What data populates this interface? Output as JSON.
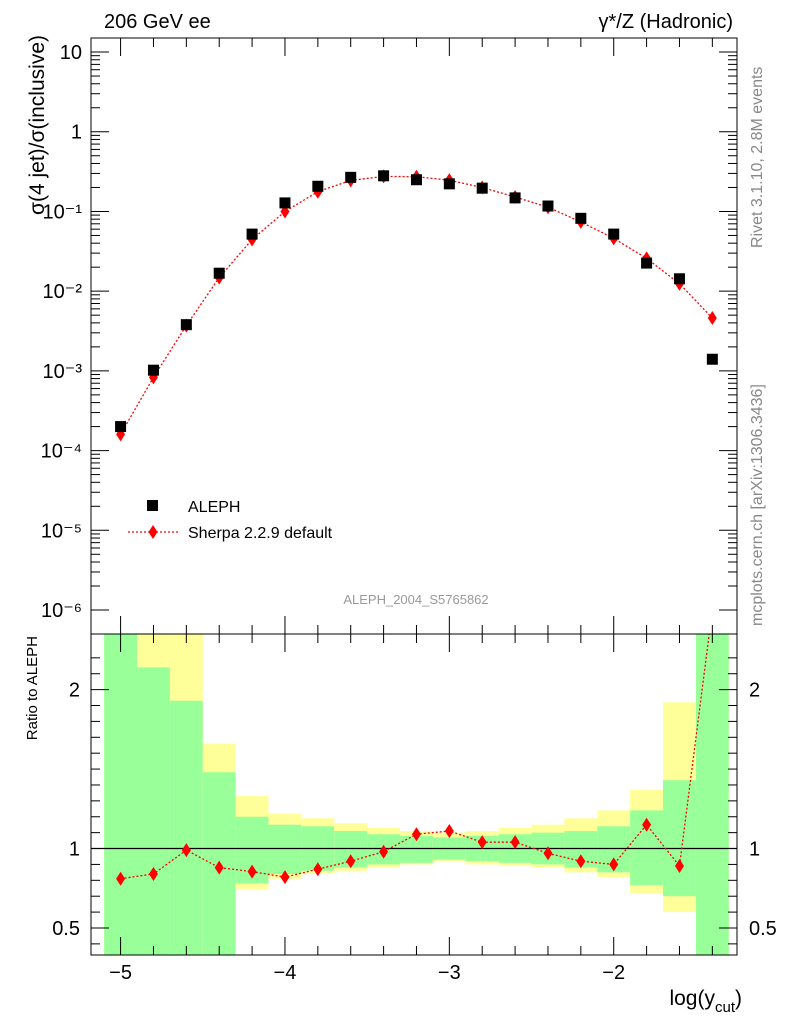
{
  "header": {
    "left": "206 GeV ee",
    "right": "γ*/Z (Hadronic)"
  },
  "side_labels": {
    "rivet": "Rivet 3.1.10,  2.8M events",
    "mcplots": "mcplots.cern.ch [arXiv:1306.3436]"
  },
  "analysis_tag": "ALEPH_2004_S5765862",
  "colors": {
    "data": "#000000",
    "mc": "#ff0000",
    "band_inner": "#99ff99",
    "band_outer": "#ffff99"
  },
  "chart_data": [
    {
      "type": "scatter",
      "panel": "main",
      "ylabel": "σ(4 jet)/σ(inclusive)",
      "yscale": "log",
      "ylim": [
        5e-07,
        15
      ],
      "xlim": [
        -5.18,
        -1.25
      ],
      "y_tick_labels": [
        "10",
        "1",
        "10⁻¹",
        "10⁻²",
        "10⁻³",
        "10⁻⁴",
        "10⁻⁵",
        "10⁻⁶"
      ],
      "legend_position": "bottom-left",
      "series": [
        {
          "name": "ALEPH",
          "style": "black-square",
          "x": [
            -5.0,
            -4.8,
            -4.6,
            -4.4,
            -4.2,
            -4.0,
            -3.8,
            -3.6,
            -3.4,
            -3.2,
            -3.0,
            -2.8,
            -2.6,
            -2.4,
            -2.2,
            -2.0,
            -1.8,
            -1.6,
            -1.4
          ],
          "y": [
            0.0002,
            0.00102,
            0.0038,
            0.0168,
            0.052,
            0.128,
            0.207,
            0.268,
            0.28,
            0.25,
            0.222,
            0.196,
            0.148,
            0.117,
            0.082,
            0.052,
            0.0225,
            0.0143,
            0.0014
          ]
        },
        {
          "name": "Sherpa 2.2.9 default",
          "style": "red-diamond-dotted",
          "x": [
            -5.0,
            -4.8,
            -4.6,
            -4.4,
            -4.2,
            -4.0,
            -3.8,
            -3.6,
            -3.4,
            -3.2,
            -3.0,
            -2.8,
            -2.6,
            -2.4,
            -2.2,
            -2.0,
            -1.8,
            -1.6,
            -1.4
          ],
          "y": [
            0.00016,
            0.00083,
            0.0037,
            0.0148,
            0.0445,
            0.1,
            0.177,
            0.245,
            0.275,
            0.273,
            0.247,
            0.2,
            0.152,
            0.113,
            0.074,
            0.046,
            0.0258,
            0.0124,
            0.0046
          ]
        }
      ]
    },
    {
      "type": "line",
      "panel": "ratio",
      "ylabel": "Ratio to ALEPH",
      "xlabel": "log(y_cut)",
      "xlabel_main": "log(y",
      "xlabel_sub": "cut",
      "xlabel_close": ")",
      "xlim": [
        -5.18,
        -1.25
      ],
      "ylim": [
        0.33,
        2.35
      ],
      "y_tick_labels": [
        "2",
        "1",
        "0.5"
      ],
      "x_tick_labels": [
        "−5",
        "−4",
        "−3",
        "−2"
      ],
      "reference_line": 1,
      "bands": {
        "bin_edges": [
          -5.1,
          -4.9,
          -4.7,
          -4.5,
          -4.3,
          -4.1,
          -3.9,
          -3.7,
          -3.5,
          -3.3,
          -3.1,
          -2.9,
          -2.7,
          -2.5,
          -2.3,
          -2.1,
          -1.9,
          -1.7,
          -1.5,
          -1.3
        ],
        "inner_low": [
          0.33,
          0.33,
          0.33,
          0.33,
          0.78,
          0.84,
          0.86,
          0.88,
          0.9,
          0.91,
          0.93,
          0.92,
          0.91,
          0.9,
          0.88,
          0.85,
          0.77,
          0.7,
          0.33
        ],
        "inner_high": [
          2.35,
          2.14,
          1.93,
          1.48,
          1.2,
          1.15,
          1.14,
          1.11,
          1.09,
          1.08,
          1.07,
          1.08,
          1.09,
          1.1,
          1.11,
          1.14,
          1.24,
          1.43,
          2.35
        ],
        "outer_low": [
          0.33,
          0.33,
          0.33,
          0.33,
          0.74,
          0.81,
          0.84,
          0.86,
          0.88,
          0.9,
          0.92,
          0.9,
          0.89,
          0.88,
          0.85,
          0.82,
          0.72,
          0.6,
          0.33
        ],
        "outer_high": [
          2.35,
          2.35,
          2.35,
          1.66,
          1.33,
          1.22,
          1.19,
          1.16,
          1.13,
          1.11,
          1.1,
          1.11,
          1.13,
          1.15,
          1.19,
          1.24,
          1.37,
          1.92,
          2.35
        ]
      },
      "series": [
        {
          "name": "Sherpa 2.2.9 default",
          "x": [
            -5.0,
            -4.8,
            -4.6,
            -4.4,
            -4.2,
            -4.0,
            -3.8,
            -3.6,
            -3.4,
            -3.2,
            -3.0,
            -2.8,
            -2.6,
            -2.4,
            -2.2,
            -2.0,
            -1.8,
            -1.6,
            -1.4
          ],
          "y": [
            0.81,
            0.84,
            0.99,
            0.88,
            0.855,
            0.82,
            0.87,
            0.92,
            0.98,
            1.09,
            1.11,
            1.04,
            1.04,
            0.97,
            0.92,
            0.9,
            1.15,
            0.89,
            3.3
          ]
        }
      ]
    }
  ]
}
